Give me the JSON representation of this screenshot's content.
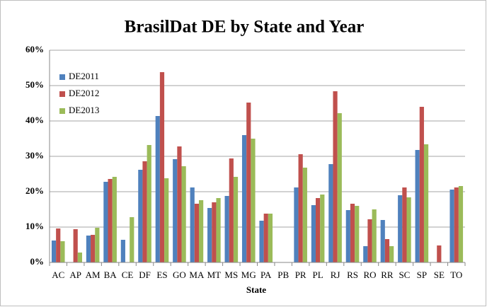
{
  "chart_data": {
    "type": "bar",
    "title": "BrasilDat DE by State and Year",
    "x_label": "State",
    "categories": [
      "AC",
      "AP",
      "AM",
      "BA",
      "CE",
      "DF",
      "ES",
      "GO",
      "MA",
      "MT",
      "MS",
      "MG",
      "PA",
      "PB",
      "PR",
      "PL",
      "RJ",
      "RS",
      "RO",
      "RR",
      "SC",
      "SP",
      "SE",
      "TO"
    ],
    "series": [
      {
        "name": "DE2011",
        "color": "#4f81bd",
        "values": [
          6.2,
          null,
          7.6,
          22.8,
          6.4,
          26.2,
          41.4,
          29.2,
          21.2,
          15.4,
          18.8,
          36.0,
          11.8,
          null,
          21.2,
          16.2,
          27.8,
          14.8,
          4.6,
          12.0,
          19.0,
          31.8,
          null,
          20.6
        ]
      },
      {
        "name": "DE2012",
        "color": "#c0504d",
        "values": [
          9.6,
          9.4,
          7.8,
          23.6,
          null,
          28.6,
          53.8,
          32.8,
          16.6,
          17.0,
          29.4,
          45.2,
          13.8,
          null,
          30.6,
          18.2,
          48.4,
          16.6,
          12.2,
          6.6,
          21.2,
          44.0,
          4.8,
          21.2
        ]
      },
      {
        "name": "DE2013",
        "color": "#9bbb59",
        "values": [
          6.0,
          2.8,
          9.8,
          24.2,
          12.8,
          33.2,
          23.8,
          27.2,
          17.6,
          18.2,
          24.2,
          35.0,
          13.8,
          null,
          26.8,
          19.2,
          42.2,
          16.0,
          15.0,
          4.6,
          18.4,
          33.4,
          null,
          21.6
        ]
      }
    ],
    "ylim": [
      0,
      60
    ],
    "yticks": [
      {
        "value": 0,
        "label": "0%"
      },
      {
        "value": 10,
        "label": "10%"
      },
      {
        "value": 20,
        "label": "20%"
      },
      {
        "value": 30,
        "label": "30%"
      },
      {
        "value": 40,
        "label": "40%"
      },
      {
        "value": 50,
        "label": "50%"
      },
      {
        "value": 60,
        "label": "60%"
      }
    ],
    "grid": true,
    "legend": "upper left"
  }
}
